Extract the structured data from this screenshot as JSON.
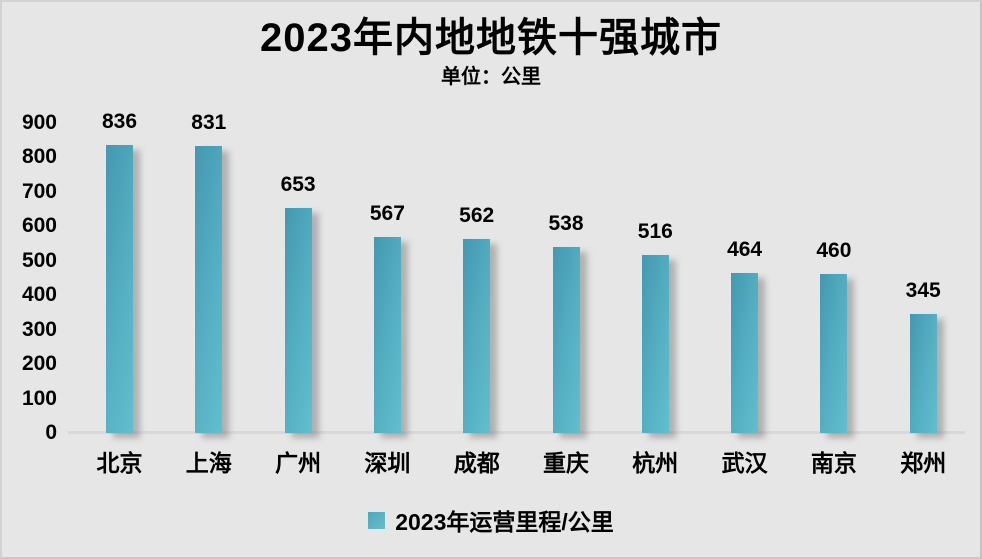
{
  "title": "2023年内地地铁十强城市",
  "subtitle": "单位：公里",
  "legend": {
    "label": "2023年运营里程/公里"
  },
  "colors": {
    "background": "#e6e6e6",
    "bar_gradient_start": "#4498b0",
    "bar_gradient_end": "#61bfce",
    "text": "#000000",
    "baseline": "#d8d8d8"
  },
  "chart_data": {
    "type": "bar",
    "title": "2023年内地地铁十强城市",
    "subtitle": "单位：公里",
    "categories": [
      "北京",
      "上海",
      "广州",
      "深圳",
      "成都",
      "重庆",
      "杭州",
      "武汉",
      "南京",
      "郑州"
    ],
    "values": [
      836,
      831,
      653,
      567,
      562,
      538,
      516,
      464,
      460,
      345
    ],
    "series_name": "2023年运营里程/公里",
    "xlabel": "",
    "ylabel": "",
    "unit": "公里",
    "ylim": [
      0,
      900
    ],
    "yticks": [
      0,
      100,
      200,
      300,
      400,
      500,
      600,
      700,
      800,
      900
    ],
    "grid": false,
    "data_labels": true,
    "legend_position": "bottom"
  }
}
